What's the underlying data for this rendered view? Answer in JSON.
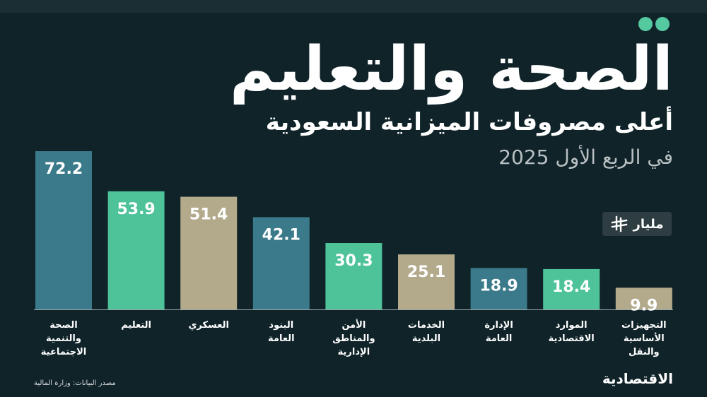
{
  "header": {
    "title": "الصحة والتعليم",
    "subtitle": "أعلى مصروفات الميزانية السعودية",
    "period": "في الربع الأول 2025"
  },
  "unit": {
    "label": "مليار",
    "icon": "riyal-currency-icon"
  },
  "chart_data": {
    "type": "bar",
    "categories": [
      "الصحة والتنمية الاجتماعية",
      "التعليم",
      "العسكري",
      "البنود العامة",
      "الأمن والمناطق الإدارية",
      "الخدمات البلدية",
      "الإدارة العامة",
      "الموارد الاقتصادية",
      "التجهيزات الأساسية والنقل"
    ],
    "category_lines": [
      [
        "الصحة",
        "والتنمية",
        "الاجتماعية"
      ],
      [
        "التعليم"
      ],
      [
        "العسكري"
      ],
      [
        "البنود",
        "العامة"
      ],
      [
        "الأمن",
        "والمناطق",
        "الإدارية"
      ],
      [
        "الخدمات",
        "البلدية"
      ],
      [
        "الإدارة",
        "العامة"
      ],
      [
        "الموارد",
        "الاقتصادية"
      ],
      [
        "التجهيزات",
        "الأساسية",
        "والنقل"
      ]
    ],
    "values": [
      72.2,
      53.9,
      51.4,
      42.1,
      30.3,
      25.1,
      18.9,
      18.4,
      9.9
    ],
    "value_labels": [
      "72.2",
      "53.9",
      "51.4",
      "42.1",
      "30.3",
      "25.1",
      "18.9",
      "18.4",
      "9.9"
    ],
    "colors": [
      "#3a7a8a",
      "#4ec39a",
      "#b3aa8c",
      "#3a7a8a",
      "#4ec39a",
      "#b3aa8c",
      "#3a7a8a",
      "#4ec39a",
      "#b3aa8c"
    ],
    "ylim": [
      0,
      72.2
    ],
    "grid": false,
    "legend": "none"
  },
  "footer": {
    "source": "مصدر البيانات: وزارة المالية",
    "brand": "الاقتصادية"
  },
  "colors": {
    "background": "#0f2328",
    "accent": "#55c9a0",
    "bar_teal": "#3a7a8a",
    "bar_green": "#4ec39a",
    "bar_beige": "#b3aa8c"
  }
}
